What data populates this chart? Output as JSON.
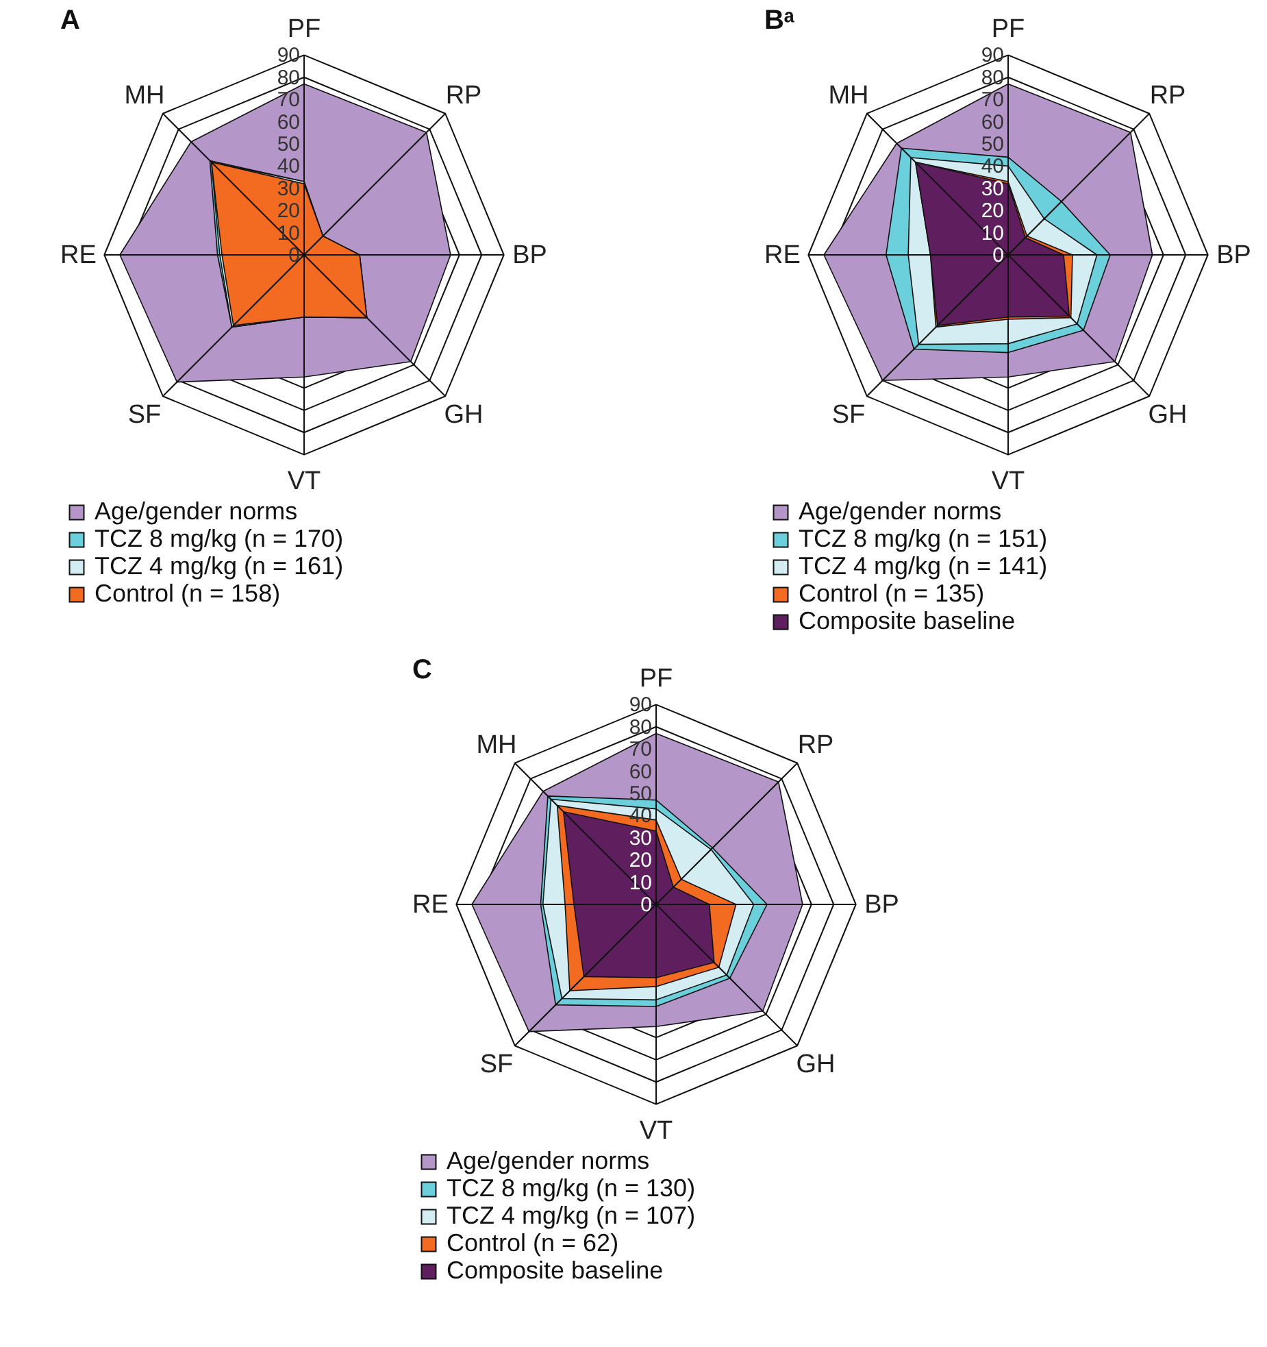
{
  "chart_data": [
    {
      "type": "radar",
      "title": "A",
      "categories": [
        "PF",
        "RP",
        "BP",
        "GH",
        "VT",
        "SF",
        "RE",
        "MH"
      ],
      "ylim": [
        0,
        90
      ],
      "yticks": [
        0,
        10,
        20,
        30,
        40,
        50,
        60,
        70,
        80,
        90
      ],
      "grid": true,
      "legend": "bottom",
      "series": [
        {
          "name": "Age/gender norms",
          "color": "#b497c8",
          "values": [
            77,
            78,
            66,
            68,
            55,
            81,
            83,
            72
          ]
        },
        {
          "name": "TCZ 8 mg/kg (n = 170)",
          "color": "#6ccfdc",
          "values": [
            33,
            12,
            25,
            40,
            28,
            46,
            39,
            60
          ]
        },
        {
          "name": "TCZ 4 mg/kg (n = 161)",
          "color": "#d3edf3",
          "values": [
            33,
            12,
            25,
            40,
            28,
            46,
            38,
            59
          ]
        },
        {
          "name": "Control (n = 158)",
          "color": "#f26b21",
          "values": [
            32,
            12,
            25,
            40,
            28,
            45,
            37,
            59
          ]
        }
      ]
    },
    {
      "type": "radar",
      "title": "Bᵃ",
      "categories": [
        "PF",
        "RP",
        "BP",
        "GH",
        "VT",
        "SF",
        "RE",
        "MH"
      ],
      "ylim": [
        0,
        90
      ],
      "yticks": [
        0,
        10,
        20,
        30,
        40,
        50,
        60,
        70,
        80,
        90
      ],
      "grid": true,
      "legend": "bottom",
      "series": [
        {
          "name": "Age/gender norms",
          "color": "#b497c8",
          "values": [
            77,
            78,
            65,
            68,
            55,
            80,
            83,
            71
          ]
        },
        {
          "name": "TCZ 8 mg/kg (n = 151)",
          "color": "#6ccfdc",
          "values": [
            44,
            34,
            46,
            48,
            44,
            60,
            55,
            68
          ]
        },
        {
          "name": "TCZ 4 mg/kg (n = 141)",
          "color": "#d3edf3",
          "values": [
            40,
            23,
            40,
            44,
            40,
            57,
            45,
            62
          ]
        },
        {
          "name": "Control (n = 135)",
          "color": "#f26b21",
          "values": [
            33,
            12,
            29,
            40,
            29,
            46,
            35,
            59
          ]
        },
        {
          "name": "Composite baseline",
          "color": "#5f1f5e",
          "values": [
            32,
            11,
            25,
            39,
            28,
            45,
            35,
            59
          ]
        }
      ]
    },
    {
      "type": "radar",
      "title": "C",
      "categories": [
        "PF",
        "RP",
        "BP",
        "GH",
        "VT",
        "SF",
        "RE",
        "MH"
      ],
      "ylim": [
        0,
        90
      ],
      "yticks": [
        0,
        10,
        20,
        30,
        40,
        50,
        60,
        70,
        80,
        90
      ],
      "grid": true,
      "legend": "bottom",
      "series": [
        {
          "name": "Age/gender norms",
          "color": "#b497c8",
          "values": [
            77,
            78,
            66,
            68,
            55,
            81,
            83,
            72
          ]
        },
        {
          "name": "TCZ 8 mg/kg (n = 130)",
          "color": "#6ccfdc",
          "values": [
            47,
            36,
            50,
            47,
            46,
            64,
            52,
            69
          ]
        },
        {
          "name": "TCZ 4 mg/kg (n = 107)",
          "color": "#d3edf3",
          "values": [
            43,
            35,
            44,
            45,
            43,
            60,
            51,
            67
          ]
        },
        {
          "name": "Control (n = 62)",
          "color": "#f26b21",
          "values": [
            38,
            16,
            36,
            40,
            37,
            55,
            41,
            63
          ]
        },
        {
          "name": "Composite baseline",
          "color": "#5f1f5e",
          "values": [
            33,
            11,
            24,
            37,
            33,
            46,
            37,
            59
          ]
        }
      ]
    }
  ]
}
